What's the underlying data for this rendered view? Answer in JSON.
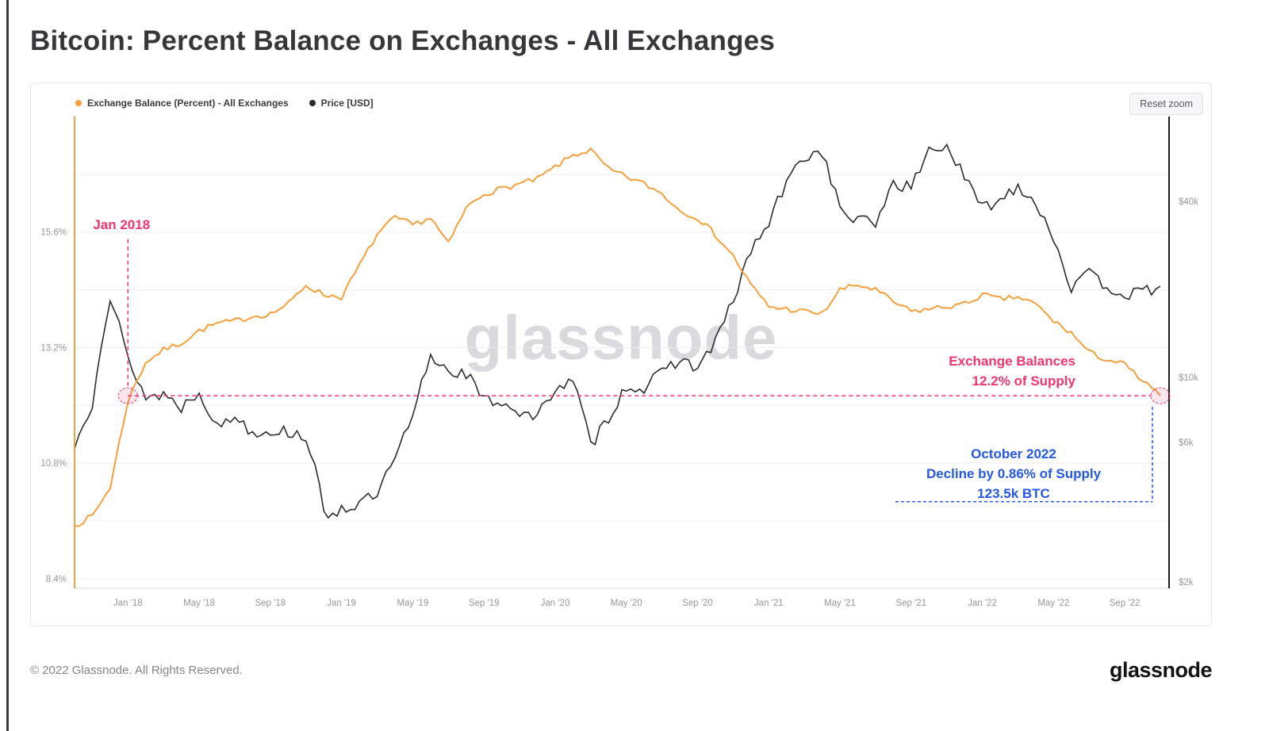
{
  "page": {
    "title": "Bitcoin: Percent Balance on Exchanges - All Exchanges",
    "footer_copyright": "© 2022 Glassnode. All Rights Reserved.",
    "brand": "glassnode"
  },
  "chart": {
    "reset_zoom_label": "Reset zoom",
    "watermark": "glassnode"
  },
  "colors": {
    "pink": "#f2356d",
    "blue": "#2458e6",
    "orange": "#f7a03a",
    "price_black": "#2d2d31",
    "grid": "#ededf1",
    "axis_gray": "#d9d9de"
  },
  "chart_data": {
    "type": "line",
    "title": "Bitcoin: Percent Balance on Exchanges - All Exchanges",
    "x": [
      "2017-10",
      "2017-11",
      "2017-12",
      "2018-01",
      "2018-02",
      "2018-03",
      "2018-04",
      "2018-05",
      "2018-06",
      "2018-07",
      "2018-08",
      "2018-09",
      "2018-10",
      "2018-11",
      "2018-12",
      "2019-01",
      "2019-02",
      "2019-03",
      "2019-04",
      "2019-05",
      "2019-06",
      "2019-07",
      "2019-08",
      "2019-09",
      "2019-10",
      "2019-11",
      "2019-12",
      "2020-01",
      "2020-02",
      "2020-03",
      "2020-04",
      "2020-05",
      "2020-06",
      "2020-07",
      "2020-08",
      "2020-09",
      "2020-10",
      "2020-11",
      "2020-12",
      "2021-01",
      "2021-02",
      "2021-03",
      "2021-04",
      "2021-05",
      "2021-06",
      "2021-07",
      "2021-08",
      "2021-09",
      "2021-10",
      "2021-11",
      "2021-12",
      "2022-01",
      "2022-02",
      "2022-03",
      "2022-04",
      "2022-05",
      "2022-06",
      "2022-07",
      "2022-08",
      "2022-09",
      "2022-10",
      "2022-11"
    ],
    "series": [
      {
        "name": "Exchange Balance (Percent) - All Exchanges",
        "axis": "left",
        "color": "#f7a03a",
        "values": [
          9.5,
          9.7,
          10.3,
          12.1,
          12.9,
          13.15,
          13.3,
          13.55,
          13.7,
          13.75,
          13.85,
          13.9,
          14.1,
          14.5,
          14.3,
          14.25,
          14.9,
          15.55,
          15.9,
          15.75,
          15.9,
          15.35,
          16.1,
          16.4,
          16.5,
          16.6,
          16.7,
          16.95,
          17.2,
          17.3,
          16.9,
          16.75,
          16.6,
          16.4,
          16.05,
          15.9,
          15.55,
          15.1,
          14.5,
          14.05,
          14.0,
          13.95,
          13.9,
          14.4,
          14.5,
          14.4,
          14.15,
          13.95,
          14.0,
          14.05,
          14.1,
          14.3,
          14.2,
          14.25,
          14.1,
          13.75,
          13.5,
          13.1,
          12.95,
          12.85,
          12.5,
          12.2
        ]
      },
      {
        "name": "Price [USD]",
        "axis": "right",
        "color": "#2d2d31",
        "values": [
          5700,
          8200,
          18500,
          11500,
          8500,
          8800,
          7900,
          9000,
          6700,
          7400,
          6500,
          6600,
          6500,
          6300,
          3400,
          3550,
          3700,
          3950,
          5200,
          7200,
          11800,
          10600,
          10300,
          8300,
          8300,
          7600,
          7200,
          9300,
          9600,
          5800,
          7300,
          9300,
          9200,
          10300,
          11600,
          10700,
          13200,
          18000,
          27000,
          33500,
          46000,
          57000,
          59000,
          37000,
          34500,
          33500,
          46500,
          44000,
          60000,
          62000,
          47500,
          38000,
          40500,
          45500,
          39500,
          30000,
          20000,
          22500,
          20500,
          19200,
          19400,
          20500
        ]
      }
    ],
    "left_axis": {
      "unit": "%",
      "scale": "linear",
      "range": [
        8.2,
        18.0
      ],
      "ticks": [
        15.6,
        13.2,
        10.8,
        8.4
      ],
      "tick_labels": [
        "15.6%",
        "13.2%",
        "10.8%",
        "8.4%"
      ],
      "grid_ticks": [
        16.8,
        15.6,
        14.4,
        13.2,
        12.0,
        10.8,
        9.6,
        8.4
      ]
    },
    "right_axis": {
      "unit": "USD",
      "scale": "log",
      "range": [
        1900,
        78000
      ],
      "ticks": [
        40000,
        10000,
        6000,
        2000
      ],
      "tick_labels": [
        "$40k",
        "$10k",
        "$6k",
        "$2k"
      ]
    },
    "x_axis": {
      "tick_x": [
        "2018-01",
        "2018-05",
        "2018-09",
        "2019-01",
        "2019-05",
        "2019-09",
        "2020-01",
        "2020-05",
        "2020-09",
        "2021-01",
        "2021-05",
        "2021-09",
        "2022-01",
        "2022-05",
        "2022-09"
      ],
      "tick_labels": [
        "Jan '18",
        "May '18",
        "Sep '18",
        "Jan '19",
        "May '19",
        "Sep '19",
        "Jan '20",
        "May '20",
        "Sep '20",
        "Jan '21",
        "May '21",
        "Sep '21",
        "Jan '22",
        "May '22",
        "Sep '22"
      ]
    },
    "annotations": {
      "jan2018": {
        "label": "Jan 2018",
        "x": "2018-01",
        "y": 12.2
      },
      "supply_line": {
        "y": 12.2
      },
      "exchange_balance": {
        "lines": [
          "Exchange Balances",
          "12.2% of Supply"
        ]
      },
      "october2022": {
        "lines": [
          "October 2022",
          "Decline by 0.86% of Supply",
          "123.5k BTC"
        ]
      }
    }
  }
}
